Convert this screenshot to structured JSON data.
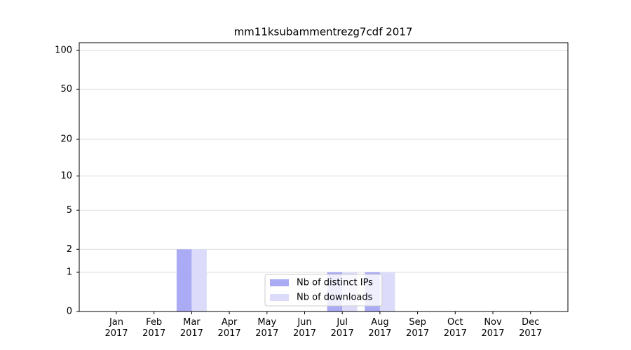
{
  "chart_data": {
    "type": "bar",
    "title": "mm11ksubammentrezg7cdf 2017",
    "categories": [
      "Jan\n2017",
      "Feb\n2017",
      "Mar\n2017",
      "Apr\n2017",
      "May\n2017",
      "Jun\n2017",
      "Jul\n2017",
      "Aug\n2017",
      "Sep\n2017",
      "Oct\n2017",
      "Nov\n2017",
      "Dec\n2017"
    ],
    "series": [
      {
        "name": "Nb of distinct IPs",
        "color": "#aaaaf5",
        "values": [
          0,
          0,
          2,
          0,
          0,
          0,
          1,
          1,
          0,
          0,
          0,
          0
        ]
      },
      {
        "name": "Nb of downloads",
        "color": "#dcdcfa",
        "values": [
          0,
          0,
          2,
          0,
          0,
          0,
          1,
          1,
          0,
          0,
          0,
          0
        ]
      }
    ],
    "yscale": "log",
    "ylim": [
      0,
      115
    ],
    "yticks": [
      0,
      1,
      2,
      5,
      10,
      20,
      50,
      100
    ],
    "grid": true,
    "legend": "lower center"
  }
}
